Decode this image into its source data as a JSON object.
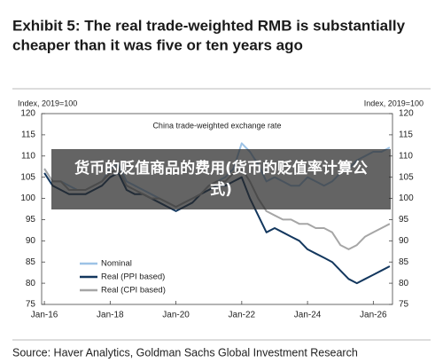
{
  "header": {
    "title_line1": "Exhibit 5: The real trade-weighted RMB is substantially",
    "title_line2": "cheaper than it was five or ten years ago"
  },
  "chart_data": {
    "type": "line",
    "title": "China trade-weighted exchange rate",
    "y_label": "Index, 2019=100",
    "y2_label": "Index, 2019=100",
    "x": [
      "2016-01",
      "2016-04",
      "2016-07",
      "2016-10",
      "2017-01",
      "2017-04",
      "2017-07",
      "2017-10",
      "2018-01",
      "2018-04",
      "2018-07",
      "2018-10",
      "2019-01",
      "2019-04",
      "2019-07",
      "2019-10",
      "2020-01",
      "2020-04",
      "2020-07",
      "2020-10",
      "2021-01",
      "2021-04",
      "2021-07",
      "2021-10",
      "2022-01",
      "2022-04",
      "2022-07",
      "2022-10",
      "2023-01",
      "2023-04",
      "2023-07",
      "2023-10",
      "2024-01",
      "2024-04",
      "2024-07",
      "2024-10",
      "2025-01",
      "2025-04",
      "2025-07",
      "2025-10",
      "2026-01",
      "2026-04",
      "2026-07"
    ],
    "series": [
      {
        "name": "Nominal",
        "color": "#9dc3e6",
        "values": [
          107,
          104,
          104,
          103,
          102,
          102,
          103,
          104,
          107,
          108,
          104,
          103,
          102,
          101,
          100,
          99,
          98,
          99,
          100,
          101,
          103,
          104,
          105,
          107,
          113,
          111,
          108,
          104,
          105,
          104,
          103,
          103,
          105,
          104,
          103,
          104,
          106,
          107,
          109,
          110,
          111,
          111,
          112
        ]
      },
      {
        "name": "Real (PPI based)",
        "color": "#13375e",
        "values": [
          106,
          103,
          102,
          101,
          101,
          101,
          102,
          103,
          105,
          106,
          102,
          101,
          101,
          100,
          99,
          98,
          97,
          98,
          99,
          101,
          102,
          103,
          103,
          104,
          105,
          100,
          96,
          92,
          93,
          92,
          91,
          90,
          88,
          87,
          86,
          85,
          83,
          81,
          80,
          81,
          82,
          83,
          84
        ]
      },
      {
        "name": "Real (CPI based)",
        "color": "#a6a6a6",
        "values": [
          107,
          104,
          104,
          102,
          102,
          102,
          103,
          104,
          106,
          107,
          103,
          102,
          101,
          100,
          100,
          99,
          98,
          99,
          100,
          101,
          103,
          104,
          104,
          106,
          107,
          104,
          100,
          97,
          96,
          95,
          95,
          94,
          94,
          93,
          93,
          92,
          89,
          88,
          89,
          91,
          92,
          93,
          94
        ]
      }
    ],
    "xlim": [
      "2015-12",
      "2026-08"
    ],
    "xticks": [
      {
        "value": "2016-01",
        "label": "Jan-16"
      },
      {
        "value": "2018-01",
        "label": "Jan-18"
      },
      {
        "value": "2020-01",
        "label": "Jan-20"
      },
      {
        "value": "2022-01",
        "label": "Jan-22"
      },
      {
        "value": "2024-01",
        "label": "Jan-24"
      },
      {
        "value": "2026-01",
        "label": "Jan-26"
      }
    ],
    "ylim": [
      75,
      120
    ],
    "yticks": [
      75,
      80,
      85,
      90,
      95,
      100,
      105,
      110,
      115,
      120
    ],
    "y2lim": [
      75,
      120
    ],
    "y2ticks": [
      75,
      80,
      85,
      90,
      95,
      100,
      105,
      110,
      115,
      120
    ],
    "legend": "lower-left"
  },
  "source": "Source: Haver Analytics, Goldman Sachs Global Investment Research",
  "watermark": "货币的贬值商品的费用(货币的贬值率计算公式)"
}
